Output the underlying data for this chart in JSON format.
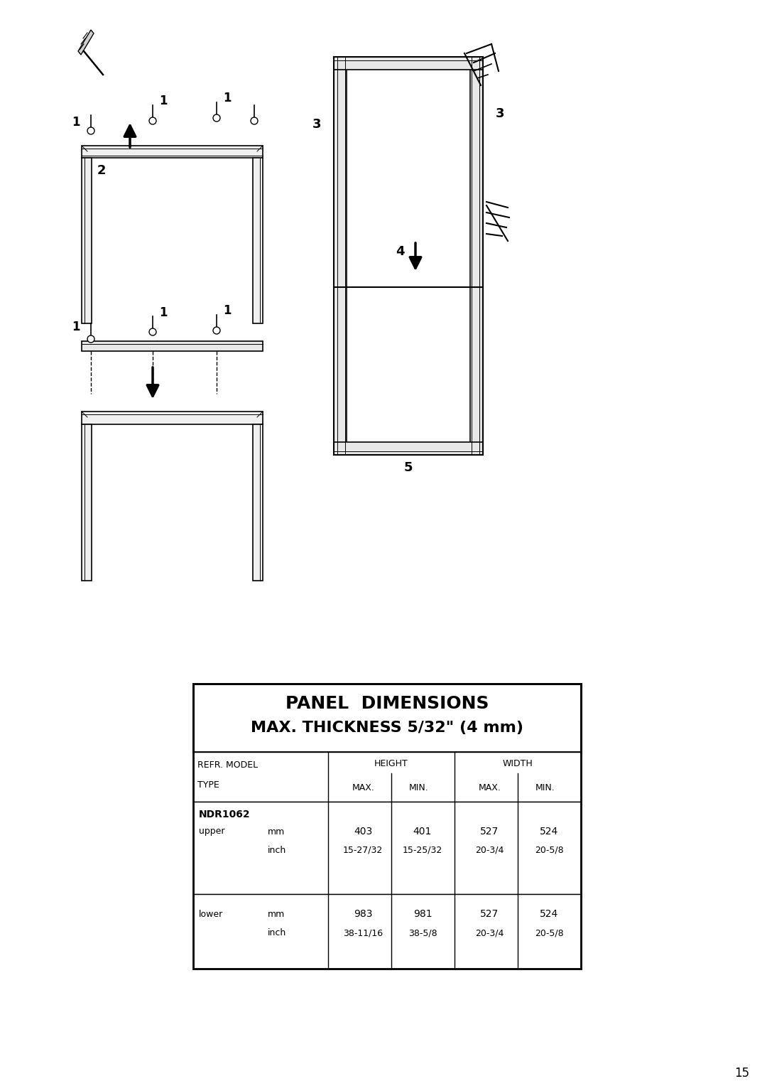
{
  "title1": "PANEL  DIMENSIONS",
  "title2": "MAX. THICKNESS 5/32\" (4 mm)",
  "model_bold": "NDR1062",
  "rows": [
    {
      "label1": "upper",
      "label2": "mm",
      "label3": "inch",
      "h_max_mm": "403",
      "h_min_mm": "401",
      "w_max_mm": "527",
      "w_min_mm": "524",
      "h_max_in": "15-27/32",
      "h_min_in": "15-25/32",
      "w_max_in": "20-3/4",
      "w_min_in": "20-5/8"
    },
    {
      "label1": "lower",
      "label2": "mm",
      "label3": "inch",
      "h_max_mm": "983",
      "h_min_mm": "981",
      "w_max_mm": "527",
      "w_min_mm": "524",
      "h_max_in": "38-11/16",
      "h_min_in": "38-5/8",
      "w_max_in": "20-3/4",
      "w_min_in": "20-5/8"
    }
  ],
  "page_number": "15",
  "bg_color": "#ffffff"
}
